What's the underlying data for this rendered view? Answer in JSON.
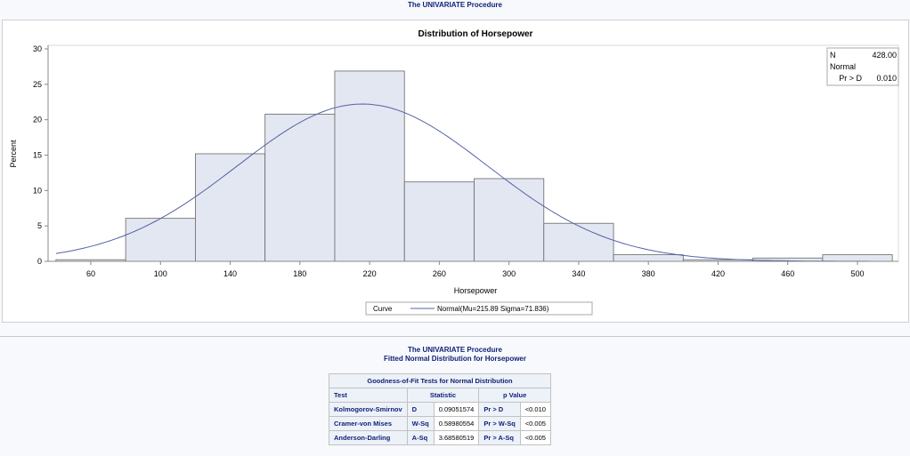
{
  "header": {
    "title": "The UNIVARIATE Procedure"
  },
  "chart_data": {
    "type": "bar",
    "title": "Distribution of Horsepower",
    "xlabel": "Horsepower",
    "ylabel": "Percent",
    "bin_edges": [
      40,
      80,
      120,
      160,
      200,
      240,
      280,
      320,
      360,
      400,
      440,
      480,
      520
    ],
    "values": [
      0.23,
      6.07,
      15.19,
      20.79,
      26.87,
      11.21,
      11.68,
      5.37,
      0.93,
      0.23,
      0.47,
      0.93
    ],
    "xticks": [
      "60",
      "100",
      "140",
      "180",
      "220",
      "260",
      "300",
      "340",
      "380",
      "420",
      "460",
      "500"
    ],
    "yticks": [
      "0",
      "5",
      "10",
      "15",
      "20",
      "25",
      "30"
    ],
    "xlim": [
      40,
      520
    ],
    "ylim": [
      0,
      30
    ],
    "curve": {
      "mu": 215.89,
      "sigma": 71.836
    },
    "legend": {
      "title": "Curve",
      "label": "Normal(Mu=215.89 Sigma=71.836)",
      "position": "bottom"
    },
    "inset": {
      "n_label": "N",
      "n_value": "428.00",
      "dist": "Normal",
      "p_label": "Pr > D",
      "p_value": "0.010"
    },
    "bar_color": "#e3e7f1",
    "curve_color": "#5561a8"
  },
  "section2": {
    "title": "The UNIVARIATE Procedure",
    "subtitle": "Fitted Normal Distribution for Horsepower"
  },
  "table": {
    "caption": "Goodness-of-Fit Tests for Normal Distribution",
    "headers": [
      "Test",
      "Statistic",
      "p Value"
    ],
    "rows": [
      {
        "test": "Kolmogorov-Smirnov",
        "stat_label": "D",
        "stat": "0.09051574",
        "p_label": "Pr > D",
        "p": "<0.010"
      },
      {
        "test": "Cramer-von Mises",
        "stat_label": "W-Sq",
        "stat": "0.58980554",
        "p_label": "Pr > W-Sq",
        "p": "<0.005"
      },
      {
        "test": "Anderson-Darling",
        "stat_label": "A-Sq",
        "stat": "3.68580519",
        "p_label": "Pr > A-Sq",
        "p": "<0.005"
      }
    ]
  }
}
